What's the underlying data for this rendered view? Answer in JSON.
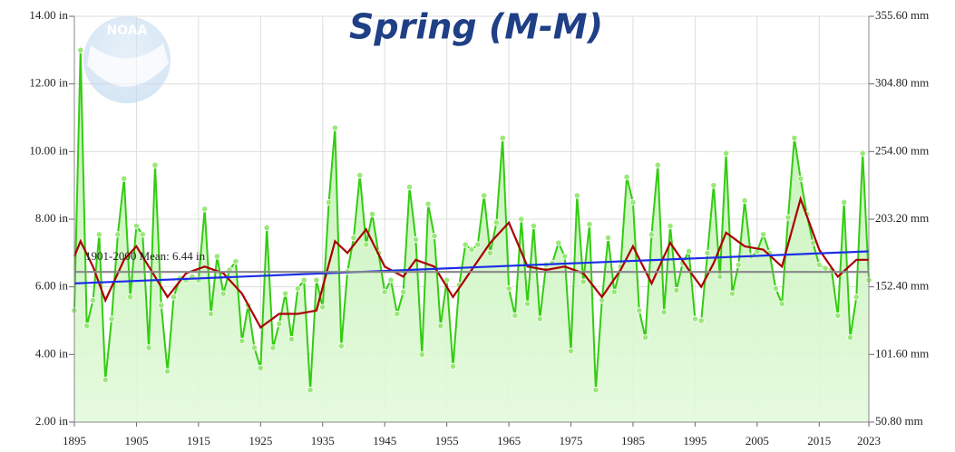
{
  "chart_data": {
    "type": "line",
    "title": "Spring (M-M)",
    "logo_text": "NOAA",
    "annotation": "1901-2000 Mean: 6.44 in",
    "x": [
      1895,
      1896,
      1897,
      1898,
      1899,
      1900,
      1901,
      1902,
      1903,
      1904,
      1905,
      1906,
      1907,
      1908,
      1909,
      1910,
      1911,
      1912,
      1913,
      1914,
      1915,
      1916,
      1917,
      1918,
      1919,
      1920,
      1921,
      1922,
      1923,
      1924,
      1925,
      1926,
      1927,
      1928,
      1929,
      1930,
      1931,
      1932,
      1933,
      1934,
      1935,
      1936,
      1937,
      1938,
      1939,
      1940,
      1941,
      1942,
      1943,
      1944,
      1945,
      1946,
      1947,
      1948,
      1949,
      1950,
      1951,
      1952,
      1953,
      1954,
      1955,
      1956,
      1957,
      1958,
      1959,
      1960,
      1961,
      1962,
      1963,
      1964,
      1965,
      1966,
      1967,
      1968,
      1969,
      1970,
      1971,
      1972,
      1973,
      1974,
      1975,
      1976,
      1977,
      1978,
      1979,
      1980,
      1981,
      1982,
      1983,
      1984,
      1985,
      1986,
      1987,
      1988,
      1989,
      1990,
      1991,
      1992,
      1993,
      1994,
      1995,
      1996,
      1997,
      1998,
      1999,
      2000,
      2001,
      2002,
      2003,
      2004,
      2005,
      2006,
      2007,
      2008,
      2009,
      2010,
      2011,
      2012,
      2013,
      2014,
      2015,
      2016,
      2017,
      2018,
      2019,
      2020,
      2021,
      2022,
      2023
    ],
    "series": [
      {
        "color": "#33cc11",
        "fill": true,
        "markers": true,
        "values": [
          5.3,
          13.0,
          4.85,
          5.6,
          7.55,
          3.25,
          5.05,
          7.55,
          9.2,
          5.7,
          7.8,
          7.55,
          4.2,
          9.6,
          5.45,
          3.5,
          5.7,
          6.25,
          6.2,
          6.3,
          6.2,
          8.3,
          5.2,
          6.9,
          5.8,
          6.5,
          6.75,
          4.4,
          5.45,
          4.2,
          3.6,
          7.75,
          4.2,
          4.9,
          5.8,
          4.45,
          5.95,
          6.2,
          2.95,
          6.2,
          5.4,
          8.5,
          10.7,
          4.25,
          6.45,
          7.45,
          9.3,
          7.25,
          8.15,
          7.0,
          5.85,
          6.2,
          5.2,
          5.85,
          8.95,
          7.4,
          4.0,
          8.45,
          7.5,
          4.85,
          6.2,
          3.65,
          6.05,
          7.25,
          7.1,
          7.25,
          8.7,
          7.0,
          7.9,
          10.4,
          5.95,
          5.15,
          8.0,
          5.5,
          7.8,
          5.05,
          6.65,
          6.7,
          7.3,
          6.9,
          4.1,
          8.7,
          6.15,
          7.85,
          2.95,
          5.6,
          7.45,
          5.85,
          6.6,
          9.25,
          8.5,
          5.3,
          4.5,
          7.55,
          9.6,
          5.25,
          7.8,
          5.9,
          6.7,
          7.05,
          5.05,
          5.0,
          7.0,
          9.0,
          6.3,
          9.95,
          5.8,
          6.65,
          8.55,
          6.9,
          7.05,
          7.55,
          7.0,
          5.95,
          5.5,
          8.05,
          10.4,
          9.2,
          8.15,
          7.3,
          6.65,
          6.55,
          6.5,
          5.15,
          8.5,
          4.5,
          5.7,
          9.95,
          6.2
        ]
      },
      {
        "color": "#aa0000",
        "x": [
          1895,
          1896,
          1898,
          1900,
          1903,
          1905,
          1907,
          1910,
          1913,
          1916,
          1919,
          1922,
          1925,
          1928,
          1931,
          1934,
          1937,
          1939,
          1942,
          1945,
          1948,
          1950,
          1953,
          1956,
          1959,
          1962,
          1965,
          1968,
          1971,
          1974,
          1977,
          1980,
          1983,
          1985,
          1988,
          1991,
          1994,
          1996,
          1998,
          2000,
          2003,
          2006,
          2009,
          2012,
          2015,
          2018,
          2021,
          2023
        ],
        "values": [
          6.9,
          7.35,
          6.6,
          5.6,
          6.8,
          7.2,
          6.6,
          5.7,
          6.4,
          6.6,
          6.4,
          5.8,
          4.8,
          5.2,
          5.2,
          5.3,
          7.35,
          7.0,
          7.7,
          6.6,
          6.3,
          6.8,
          6.6,
          5.7,
          6.5,
          7.3,
          7.9,
          6.6,
          6.5,
          6.6,
          6.4,
          5.7,
          6.5,
          7.2,
          6.1,
          7.3,
          6.5,
          6.0,
          6.7,
          7.6,
          7.2,
          7.1,
          6.6,
          8.6,
          7.1,
          6.3,
          6.8,
          6.8
        ]
      },
      {
        "color": "#1a2ee6",
        "x": [
          1895,
          2023
        ],
        "values": [
          6.1,
          7.05
        ]
      },
      {
        "color": "#888888",
        "x": [
          1895,
          2023
        ],
        "values": [
          6.44,
          6.44
        ]
      }
    ],
    "xlim": [
      1895,
      2023
    ],
    "xticks": [
      1895,
      1905,
      1915,
      1925,
      1935,
      1945,
      1955,
      1965,
      1975,
      1985,
      1995,
      2005,
      2015,
      2023
    ],
    "ylim": [
      2,
      14
    ],
    "yticks": [
      {
        "value": 2,
        "label": "2.00 in"
      },
      {
        "value": 4,
        "label": "4.00 in"
      },
      {
        "value": 6,
        "label": "6.00 in"
      },
      {
        "value": 8,
        "label": "8.00 in"
      },
      {
        "value": 10,
        "label": "10.00 in"
      },
      {
        "value": 12,
        "label": "12.00 in"
      },
      {
        "value": 14,
        "label": "14.00 in"
      }
    ],
    "y2lim": [
      50.8,
      355.6
    ],
    "y2ticks": [
      {
        "value": 50.8,
        "label": "50.80 mm"
      },
      {
        "value": 101.6,
        "label": "101.60 mm"
      },
      {
        "value": 152.4,
        "label": "152.40 mm"
      },
      {
        "value": 203.2,
        "label": "203.20 mm"
      },
      {
        "value": 254,
        "label": "254.00 mm"
      },
      {
        "value": 304.8,
        "label": "304.80 mm"
      },
      {
        "value": 355.6,
        "label": "355.60 mm"
      }
    ],
    "grid": true
  }
}
